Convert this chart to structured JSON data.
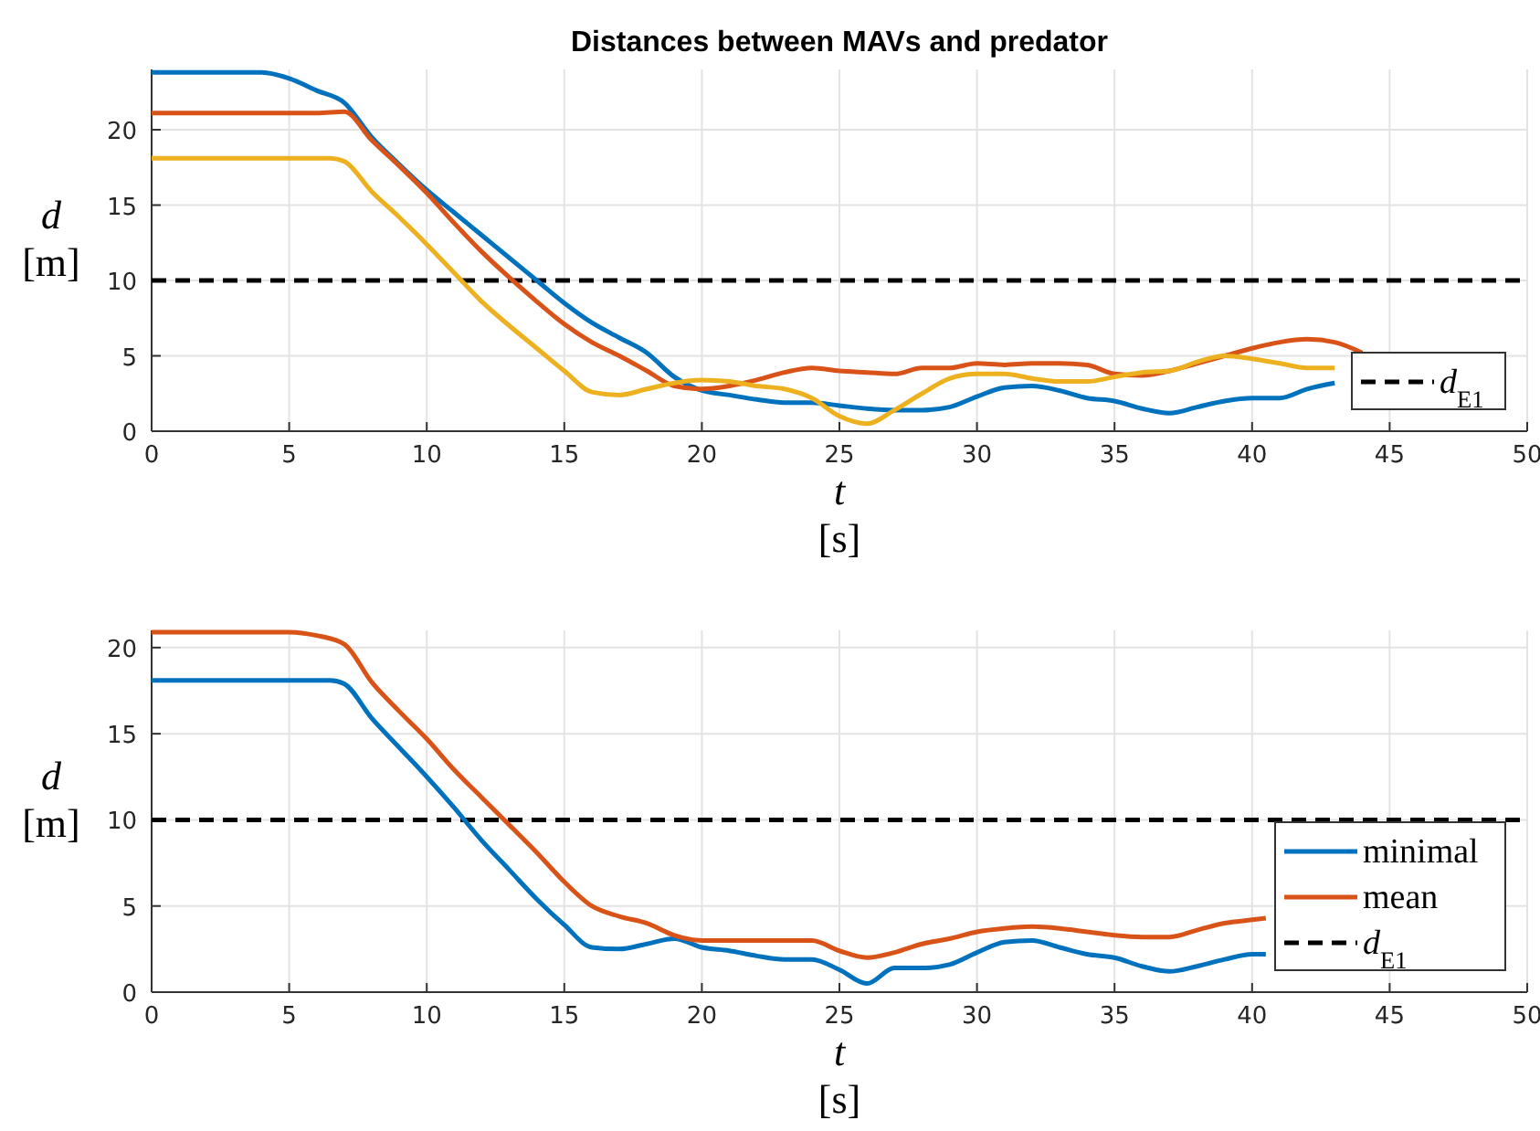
{
  "chart_data": [
    {
      "type": "line",
      "title": "Distances between MAVs and predator",
      "xlabel": "t [s]",
      "ylabel": "d [m]",
      "xlim": [
        0,
        50
      ],
      "xticks": [
        0,
        5,
        10,
        15,
        20,
        25,
        30,
        35,
        40,
        45,
        50
      ],
      "ylim": [
        0,
        24
      ],
      "yticks": [
        0,
        5,
        10,
        15,
        20
      ],
      "grid": true,
      "legend": "bottom right",
      "series": [
        {
          "color": "#0072bd",
          "x": [
            0,
            4,
            5,
            6,
            7,
            8,
            9,
            10,
            11,
            12,
            13,
            14,
            15,
            16,
            17,
            18,
            19,
            20,
            21,
            22,
            23,
            24,
            25,
            26,
            27,
            28,
            29,
            30,
            31,
            32,
            33,
            34,
            35,
            36,
            37,
            38,
            39,
            40,
            41,
            42,
            43
          ],
          "values": [
            23.8,
            23.8,
            23.4,
            22.6,
            21.8,
            19.5,
            17.7,
            16.0,
            14.5,
            13.0,
            11.5,
            10.0,
            8.5,
            7.2,
            6.2,
            5.2,
            3.6,
            2.7,
            2.4,
            2.1,
            1.9,
            1.9,
            1.7,
            1.5,
            1.4,
            1.4,
            1.6,
            2.3,
            2.9,
            3.0,
            2.7,
            2.2,
            2.0,
            1.5,
            1.2,
            1.6,
            2.0,
            2.2,
            2.2,
            2.8,
            3.2
          ]
        },
        {
          "color": "#d95319",
          "x": [
            0,
            6,
            7,
            8,
            9,
            10,
            11,
            12,
            13,
            14,
            15,
            16,
            17,
            18,
            19,
            20,
            21,
            22,
            23,
            24,
            25,
            26,
            27,
            28,
            29,
            30,
            31,
            32,
            33,
            34,
            35,
            36,
            37,
            38,
            39,
            40,
            41,
            42,
            43,
            44
          ],
          "values": [
            21.1,
            21.1,
            21.2,
            19.3,
            17.6,
            15.8,
            13.8,
            11.9,
            10.2,
            8.6,
            7.1,
            5.9,
            5.0,
            4.0,
            3.0,
            2.8,
            3.0,
            3.4,
            3.9,
            4.2,
            4.0,
            3.9,
            3.8,
            4.2,
            4.2,
            4.5,
            4.4,
            4.5,
            4.5,
            4.4,
            3.8,
            3.7,
            4.0,
            4.5,
            5.0,
            5.5,
            5.9,
            6.1,
            5.9,
            5.2
          ]
        },
        {
          "color": "#edb120",
          "x": [
            0,
            6.5,
            7,
            8,
            9,
            10,
            11,
            12,
            13,
            14,
            15,
            16,
            17,
            18,
            19,
            20,
            21,
            22,
            23,
            24,
            25,
            26,
            27,
            28,
            29,
            30,
            31,
            32,
            33,
            34,
            35,
            36,
            37,
            38,
            39,
            40,
            41,
            42,
            43
          ],
          "values": [
            18.1,
            18.1,
            17.9,
            15.9,
            14.2,
            12.4,
            10.5,
            8.6,
            7.0,
            5.5,
            4.0,
            2.6,
            2.4,
            2.8,
            3.2,
            3.4,
            3.3,
            3.0,
            2.8,
            2.2,
            1.0,
            0.5,
            1.4,
            2.5,
            3.5,
            3.8,
            3.8,
            3.5,
            3.3,
            3.3,
            3.6,
            3.9,
            4.0,
            4.6,
            5.0,
            4.8,
            4.5,
            4.2,
            4.2
          ]
        }
      ],
      "ref_lines": [
        {
          "axis": "y",
          "value": 10,
          "label": "d$_{E1}$",
          "color": "#000000",
          "line_style": "dashed"
        }
      ]
    },
    {
      "type": "line",
      "xlabel": "t [s]",
      "ylabel": "d [m]",
      "xlim": [
        0,
        50
      ],
      "xticks": [
        0,
        5,
        10,
        15,
        20,
        25,
        30,
        35,
        40,
        45,
        50
      ],
      "ylim": [
        0,
        21
      ],
      "yticks": [
        0,
        5,
        10,
        15,
        20
      ],
      "grid": true,
      "legend": "bottom right",
      "series": [
        {
          "name": "minimal",
          "color": "#0072bd",
          "x": [
            0,
            6.5,
            7,
            8,
            9,
            10,
            11,
            12,
            13,
            14,
            15,
            16,
            17,
            18,
            19,
            20,
            21,
            22,
            23,
            24,
            25,
            26,
            27,
            28,
            29,
            30,
            31,
            32,
            33,
            34,
            35,
            36,
            37,
            38,
            39,
            40,
            40.5
          ],
          "values": [
            18.1,
            18.1,
            17.9,
            15.9,
            14.2,
            12.5,
            10.7,
            8.8,
            7.1,
            5.4,
            3.9,
            2.6,
            2.5,
            2.8,
            3.1,
            2.6,
            2.4,
            2.1,
            1.9,
            1.9,
            1.3,
            0.5,
            1.4,
            1.4,
            1.6,
            2.3,
            2.9,
            3.0,
            2.6,
            2.2,
            2.0,
            1.5,
            1.2,
            1.5,
            1.9,
            2.2,
            2.2
          ]
        },
        {
          "name": "mean",
          "color": "#d95319",
          "x": [
            0,
            4,
            5,
            6,
            7,
            8,
            9,
            10,
            11,
            12,
            13,
            14,
            15,
            16,
            17,
            18,
            19,
            20,
            21,
            22,
            23,
            24,
            25,
            26,
            27,
            28,
            29,
            30,
            31,
            32,
            33,
            34,
            35,
            36,
            37,
            38,
            39,
            40,
            40.5
          ],
          "values": [
            20.9,
            20.9,
            20.9,
            20.7,
            20.2,
            18.0,
            16.3,
            14.7,
            12.9,
            11.3,
            9.7,
            8.1,
            6.4,
            5.0,
            4.4,
            4.0,
            3.3,
            3.0,
            3.0,
            3.0,
            3.0,
            3.0,
            2.4,
            2.0,
            2.3,
            2.8,
            3.1,
            3.5,
            3.7,
            3.8,
            3.7,
            3.5,
            3.3,
            3.2,
            3.2,
            3.6,
            4.0,
            4.2,
            4.3
          ]
        }
      ],
      "ref_lines": [
        {
          "axis": "y",
          "value": 10,
          "label": "d$_{E1}$",
          "color": "#000000",
          "line_style": "dashed"
        }
      ]
    }
  ]
}
